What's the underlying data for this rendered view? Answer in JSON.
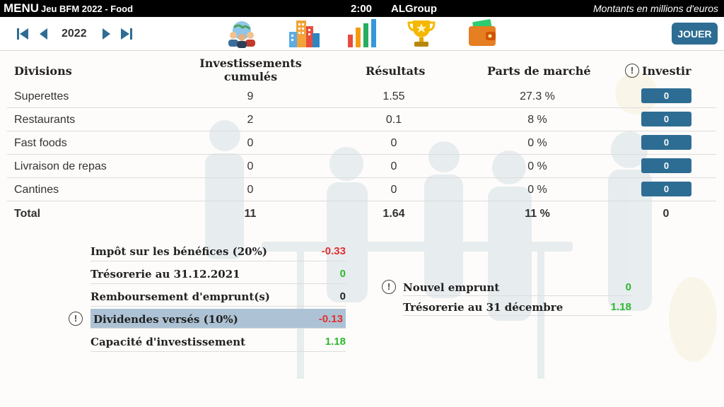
{
  "topbar": {
    "menu_label": "MENU",
    "game_title": "Jeu BFM 2022 - Food",
    "timer": "2:00",
    "company": "ALGroup",
    "units_note": "Montants en millions d'euros"
  },
  "nav": {
    "year": "2022",
    "icons": [
      "team-icon",
      "city-icon",
      "bar-chart-icon",
      "trophy-icon",
      "wallet-icon"
    ],
    "play_label": "JOUER"
  },
  "table": {
    "headers": {
      "divisions": "Divisions",
      "investments_line1": "Investissements",
      "investments_line2": "cumulés",
      "results": "Résultats",
      "market_share": "Parts de marché",
      "invest": "Investir"
    },
    "rows": [
      {
        "name": "Superettes",
        "investments": "9",
        "results": "1.55",
        "market_share": "27.3 %",
        "invest": "0"
      },
      {
        "name": "Restaurants",
        "investments": "2",
        "results": "0.1",
        "market_share": "8 %",
        "invest": "0"
      },
      {
        "name": "Fast foods",
        "investments": "0",
        "results": "0",
        "market_share": "0 %",
        "invest": "0"
      },
      {
        "name": "Livraison de repas",
        "investments": "0",
        "results": "0",
        "market_share": "0 %",
        "invest": "0"
      },
      {
        "name": "Cantines",
        "investments": "0",
        "results": "0",
        "market_share": "0 %",
        "invest": "0"
      }
    ],
    "total": {
      "name": "Total",
      "investments": "11",
      "results": "1.64",
      "market_share": "11 %",
      "invest": "0"
    }
  },
  "finance_left": [
    {
      "label": "Impôt sur les bénéfices (20%)",
      "value": "-0.33",
      "tone": "neg"
    },
    {
      "label": "Trésorerie au 31.12.2021",
      "value": "0",
      "tone": "pos"
    },
    {
      "label": "Remboursement d'emprunt(s)",
      "value": "0",
      "tone": "zero"
    },
    {
      "label": "Dividendes versés (10%)",
      "value": "-0.13",
      "tone": "neg"
    },
    {
      "label": "Capacité d'investissement",
      "value": "1.18",
      "tone": "pos"
    }
  ],
  "finance_right": [
    {
      "label": "Nouvel emprunt",
      "value": "0",
      "tone": "pos"
    },
    {
      "label": "Trésorerie au 31 décembre",
      "value": "1.18",
      "tone": "pos"
    }
  ],
  "colors": {
    "accent": "#2e6d93",
    "negative": "#e02f2f",
    "positive": "#2eb82e",
    "highlight_row": "#adc3d5"
  }
}
